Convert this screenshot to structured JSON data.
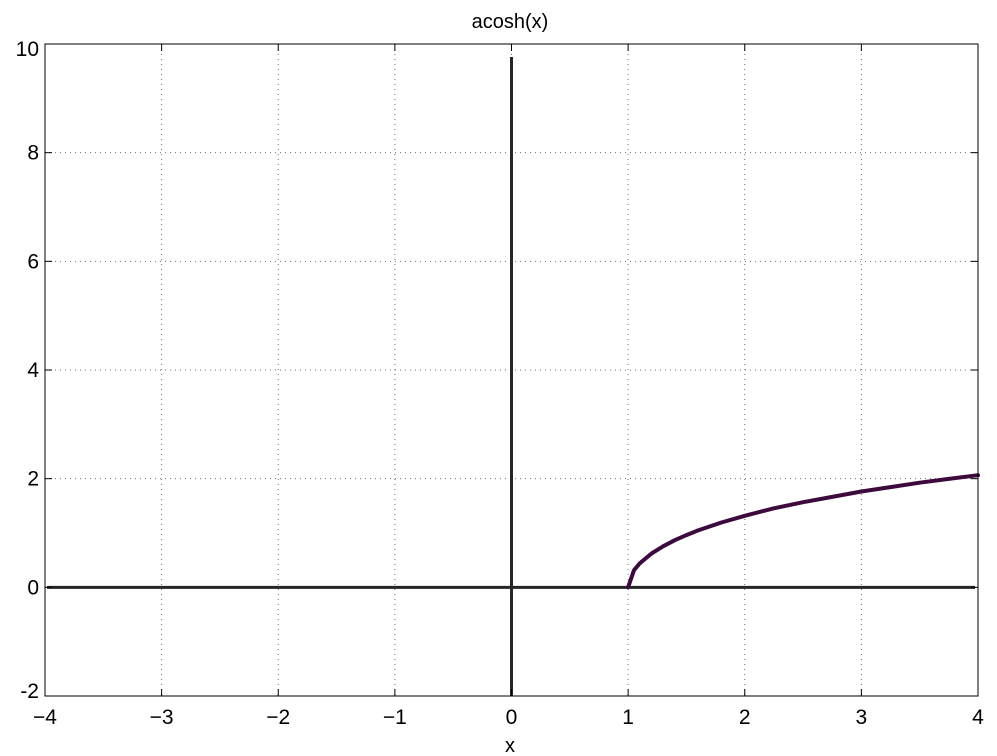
{
  "chart_data": {
    "type": "line",
    "title": "acosh(x)",
    "xlabel": "x",
    "ylabel": "",
    "xlim": [
      -4,
      4
    ],
    "ylim": [
      -2,
      10
    ],
    "xticks": [
      -4,
      -3,
      -2,
      -1,
      0,
      1,
      2,
      3,
      4
    ],
    "xtick_labels": [
      "−4",
      "−3",
      "−2",
      "−1",
      "0",
      "1",
      "2",
      "3",
      "4"
    ],
    "yticks": [
      -2,
      0,
      2,
      4,
      6,
      8,
      10
    ],
    "ytick_labels": [
      "-2",
      "0",
      "2",
      "4",
      "6",
      "8",
      "10"
    ],
    "grid": true,
    "reference_lines": {
      "x0": 0,
      "y0": 0
    },
    "colors": {
      "series": "#3d0a3d",
      "reference": "#262626"
    },
    "series": [
      {
        "x": [
          1.0,
          1.05,
          1.1,
          1.2,
          1.3,
          1.4,
          1.5,
          1.6,
          1.8,
          2.0,
          2.25,
          2.5,
          2.75,
          3.0,
          3.25,
          3.5,
          3.75,
          4.0
        ],
        "y": [
          0.0,
          0.315,
          0.443,
          0.622,
          0.756,
          0.867,
          0.962,
          1.047,
          1.193,
          1.317,
          1.454,
          1.567,
          1.665,
          1.763,
          1.844,
          1.925,
          1.995,
          2.063
        ]
      }
    ]
  }
}
